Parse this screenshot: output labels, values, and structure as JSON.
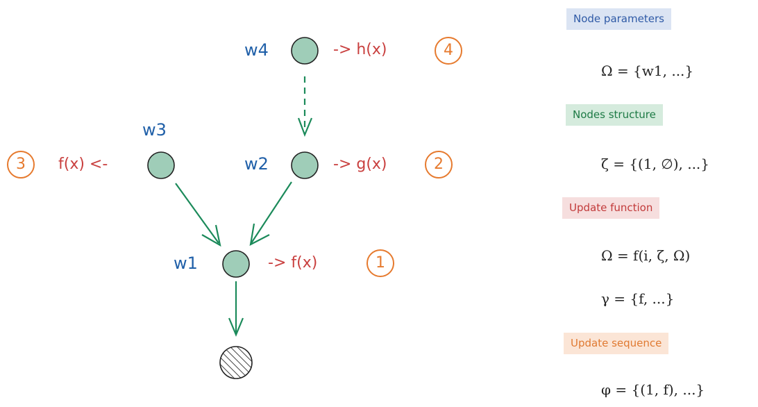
{
  "nodes": {
    "w4": {
      "name": "w4",
      "func": "-> h(x)",
      "step": "4"
    },
    "w3": {
      "name": "w3",
      "func": "f(x) <-",
      "step": "3"
    },
    "w2": {
      "name": "w2",
      "func": "-> g(x)",
      "step": "2"
    },
    "w1": {
      "name": "w1",
      "func": "-> f(x)",
      "step": "1"
    }
  },
  "panel": {
    "node_parameters": {
      "label": "Node parameters",
      "formula": "Ω = {w1, ...}"
    },
    "nodes_structure": {
      "label": "Nodes structure",
      "formula": "ζ = {(1, ∅), ...}"
    },
    "update_function": {
      "label": "Update function",
      "formula1": "Ω = f(i, ζ, Ω)",
      "formula2": "γ = {f, ...}"
    },
    "update_sequence": {
      "label": "Update sequence",
      "formula": "φ = {(1, f), ...}"
    }
  },
  "colors": {
    "node_fill": "#9fcdb8",
    "edge": "#1b8a5a",
    "weight_label": "#1f5fa8",
    "function_label": "#c9403f",
    "step_circle": "#e67a2e"
  }
}
